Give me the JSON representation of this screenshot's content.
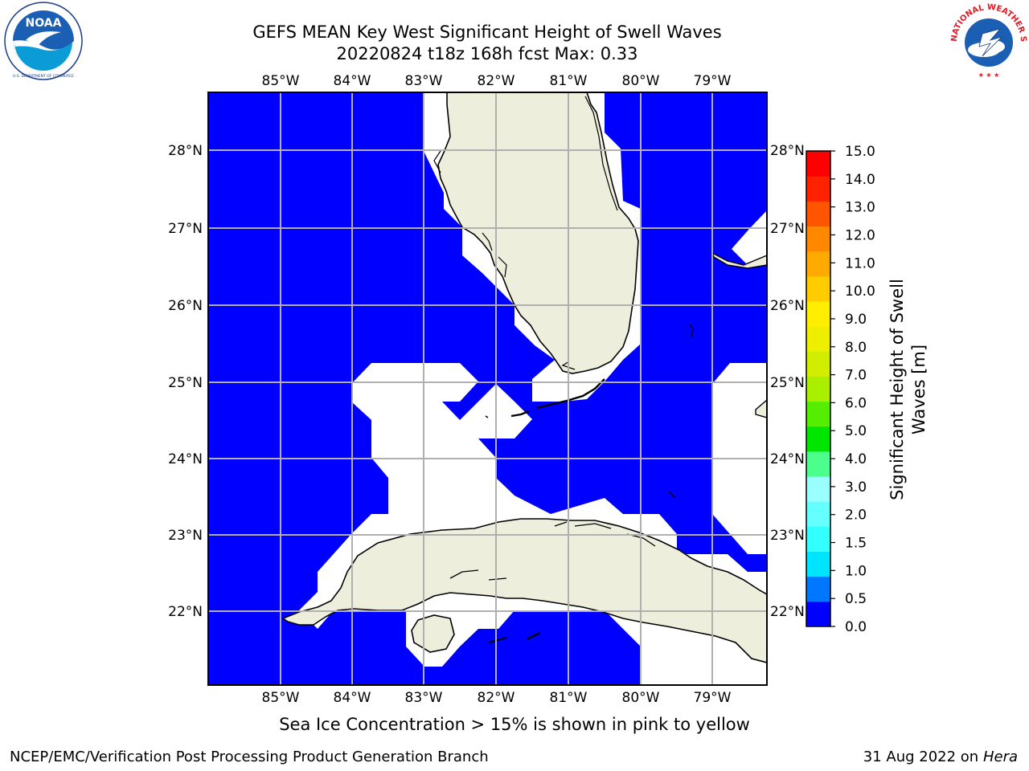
{
  "title_line1": "GEFS MEAN Key West Significant Height of Swell Waves",
  "title_line2": "20220824 t18z 168h fcst   Max: 0.33",
  "lon_labels": [
    "85°W",
    "84°W",
    "83°W",
    "82°W",
    "81°W",
    "80°W",
    "79°W"
  ],
  "lat_labels": [
    "28°N",
    "27°N",
    "26°N",
    "25°N",
    "24°N",
    "23°N",
    "22°N"
  ],
  "colorbar": {
    "label_line1": "Significant Height of Swell",
    "label_line2": "Waves [m]",
    "ticks": [
      "0.0",
      "0.5",
      "1.0",
      "1.5",
      "2.0",
      "3.0",
      "4.0",
      "5.0",
      "6.0",
      "7.0",
      "8.0",
      "9.0",
      "10.0",
      "11.0",
      "12.0",
      "13.0",
      "14.0",
      "15.0"
    ],
    "colors": [
      "#0000ff",
      "#0077ff",
      "#00e5ff",
      "#33ffff",
      "#66ffff",
      "#99ffff",
      "#4cff8c",
      "#00e600",
      "#55ee00",
      "#aaee00",
      "#d2ee00",
      "#eeee00",
      "#ffee00",
      "#ffcc00",
      "#ffaa00",
      "#ff8800",
      "#ff5500",
      "#ff2200",
      "#ff0000"
    ]
  },
  "colors": {
    "ocean": "#0000ff",
    "land": "#eeeedc",
    "nodata": "#ffffff",
    "grid": "#b0b0b0"
  },
  "caption": "Sea Ice Concentration > 15% is shown in pink to yellow",
  "footer_left": "NCEP/EMC/Verification Post Processing Product Generation Branch",
  "footer_date": "31 Aug 2022 on",
  "footer_host": "Hera",
  "logo_left_text": "NOAA",
  "logo_right_text": "NATIONAL WEATHER SERVICE"
}
